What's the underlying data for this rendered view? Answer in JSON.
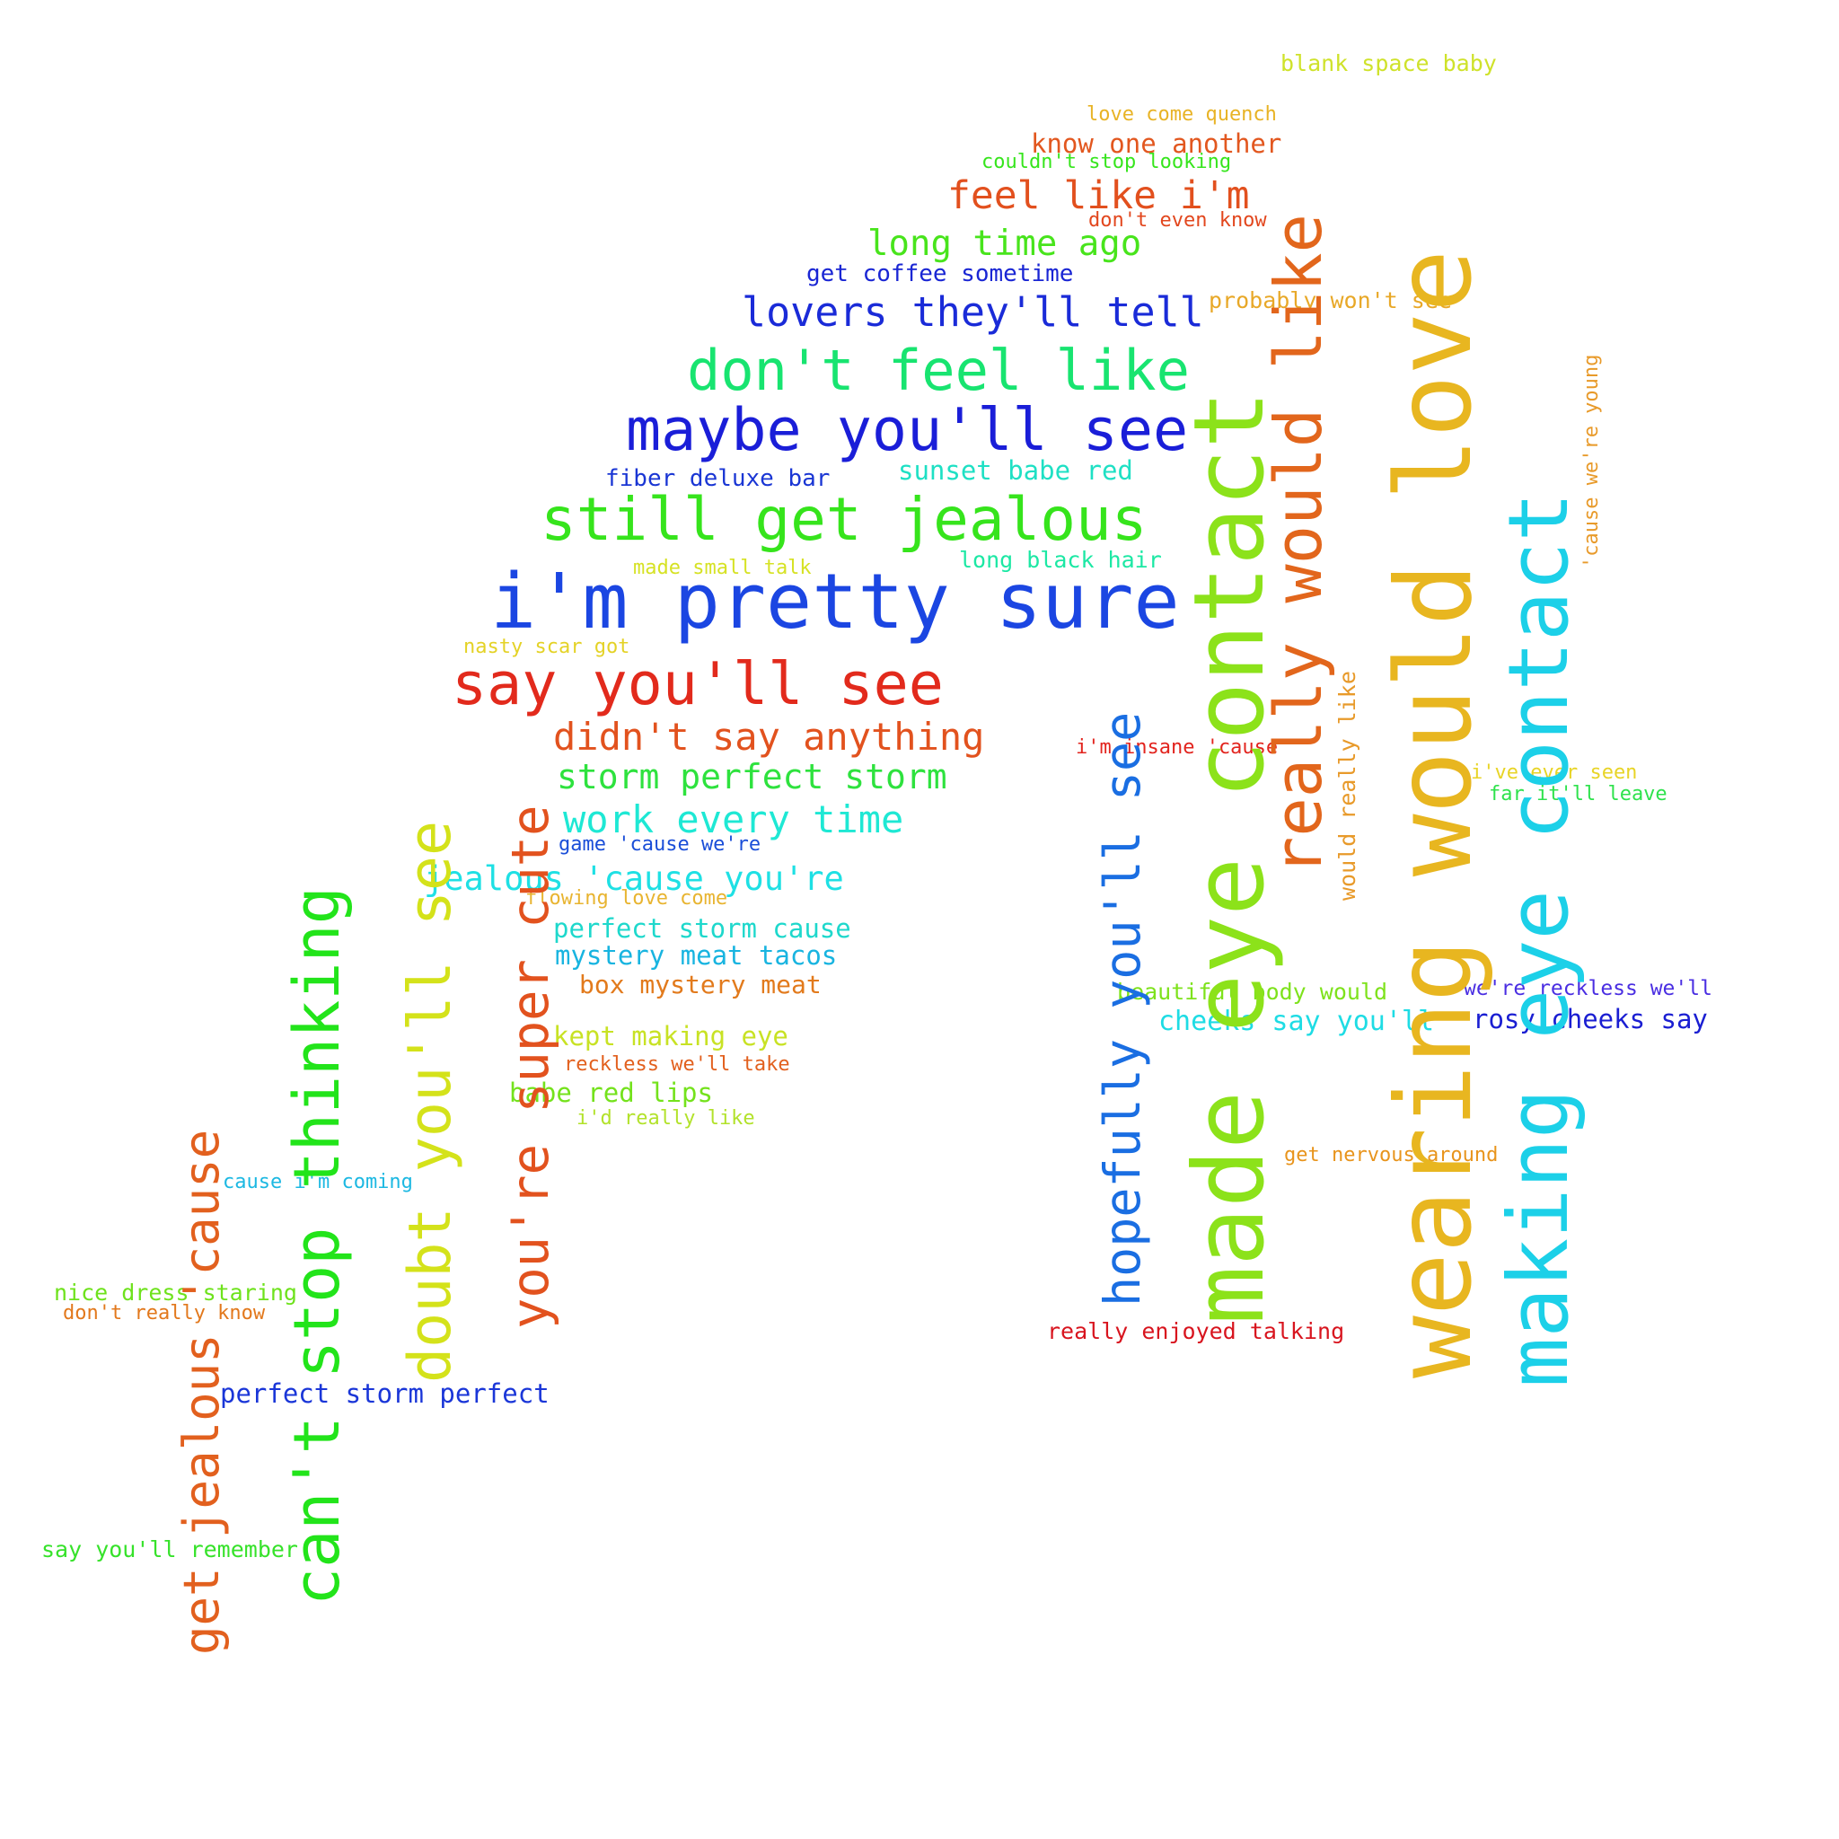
{
  "phrases": [
    {
      "text": "blank space baby",
      "color": "#cfe22a"
    },
    {
      "text": "love come quench",
      "color": "#e8b325"
    },
    {
      "text": "know one another",
      "color": "#e2571f"
    },
    {
      "text": "couldn't stop looking",
      "color": "#36e51c"
    },
    {
      "text": "feel like i'm",
      "color": "#e2501e"
    },
    {
      "text": "don't even know",
      "color": "#e2471e"
    },
    {
      "text": "long time ago",
      "color": "#48e41c"
    },
    {
      "text": "get coffee sometime",
      "color": "#1a26d4"
    },
    {
      "text": "lovers they'll tell",
      "color": "#1a2bd8"
    },
    {
      "text": "probably won't see",
      "color": "#e8a828"
    },
    {
      "text": "don't feel like",
      "color": "#18e470"
    },
    {
      "text": "maybe you'll see",
      "color": "#1a1ed8"
    },
    {
      "text": "fiber deluxe bar",
      "color": "#1a36d4"
    },
    {
      "text": "sunset babe red",
      "color": "#1ee0c4"
    },
    {
      "text": "still get jealous",
      "color": "#36e41c"
    },
    {
      "text": "long black hair",
      "color": "#1ce8a4"
    },
    {
      "text": "made small talk",
      "color": "#d6e224"
    },
    {
      "text": "i'm pretty sure",
      "color": "#1b46e2"
    },
    {
      "text": "nasty scar got",
      "color": "#e4d226"
    },
    {
      "text": "say you'll see",
      "color": "#e22a1c"
    },
    {
      "text": "didn't say anything",
      "color": "#e2521e"
    },
    {
      "text": "storm perfect storm",
      "color": "#2ee23e"
    },
    {
      "text": "work every time",
      "color": "#1ee8d4"
    },
    {
      "text": "game 'cause we're",
      "color": "#1a4ed8"
    },
    {
      "text": "jealous 'cause you're",
      "color": "#1ee0e4"
    },
    {
      "text": "flowing love come",
      "color": "#e8b430"
    },
    {
      "text": "perfect storm cause",
      "color": "#1ed8cc"
    },
    {
      "text": "mystery meat tacos",
      "color": "#18b4e0"
    },
    {
      "text": "box mystery meat",
      "color": "#e27a1c"
    },
    {
      "text": "kept making eye",
      "color": "#c8e224"
    },
    {
      "text": "reckless we'll take",
      "color": "#e2601e"
    },
    {
      "text": "babe red lips",
      "color": "#74e21c"
    },
    {
      "text": "i'd really like",
      "color": "#b2e22a"
    },
    {
      "text": "cause i'm coming",
      "color": "#1cb8e2"
    },
    {
      "text": "nice dress staring",
      "color": "#6ee21c"
    },
    {
      "text": "don't really know",
      "color": "#e2781c"
    },
    {
      "text": "perfect storm perfect",
      "color": "#1a36d8"
    },
    {
      "text": "say you'll remember",
      "color": "#36e22a"
    },
    {
      "text": "i'm insane 'cause",
      "color": "#e2241e"
    },
    {
      "text": "i've ever seen",
      "color": "#e8d426"
    },
    {
      "text": "far it'll leave",
      "color": "#2ee24c"
    },
    {
      "text": "beautiful body would",
      "color": "#7ee21c"
    },
    {
      "text": "cheeks say you'll",
      "color": "#1edce4"
    },
    {
      "text": "we're reckless we'll",
      "color": "#4a2ee2"
    },
    {
      "text": "rosy cheeks say",
      "color": "#1a1ed2"
    },
    {
      "text": "get nervous around",
      "color": "#e8941c"
    },
    {
      "text": "really enjoyed talking",
      "color": "#d8141e"
    },
    {
      "text": "wearing would love",
      "color": "#e8b620"
    },
    {
      "text": "made eye contact",
      "color": "#8ce21a"
    },
    {
      "text": "making eye contact",
      "color": "#1cd0e8"
    },
    {
      "text": "really would like",
      "color": "#e2661c"
    },
    {
      "text": "hopefully you'll see",
      "color": "#1a6ee2"
    },
    {
      "text": "'cause we're young",
      "color": "#e89a2a"
    },
    {
      "text": "would really like",
      "color": "#e89a2a"
    },
    {
      "text": "you're super cute",
      "color": "#e2521e"
    },
    {
      "text": "doubt you'll see",
      "color": "#d4e21a"
    },
    {
      "text": "can't stop thinking",
      "color": "#22e41a"
    },
    {
      "text": "get jealous 'cause",
      "color": "#e2601e"
    }
  ]
}
